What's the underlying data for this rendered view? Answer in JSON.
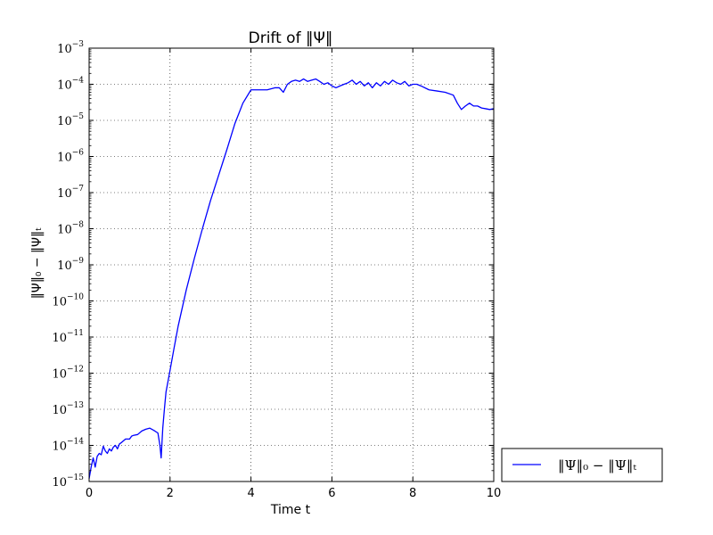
{
  "chart_data": {
    "type": "line",
    "title": "Drift of ‖Ψ‖",
    "xlabel": "Time t",
    "ylabel": "‖Ψ‖₀ − ‖Ψ‖ₜ",
    "xlim": [
      0,
      10
    ],
    "ylim_log10": [
      -15,
      -3
    ],
    "y_scale": "log",
    "grid": true,
    "legend_position": "outside-right-bottom",
    "x_ticks": [
      "0",
      "2",
      "4",
      "6",
      "8",
      "10"
    ],
    "y_tick_base": "10",
    "y_tick_exponents": [
      "−15",
      "−14",
      "−13",
      "−12",
      "−11",
      "−10",
      "−9",
      "−8",
      "−7",
      "−6",
      "−5",
      "−4",
      "−3"
    ],
    "series": [
      {
        "name": "‖Ψ‖₀ − ‖Ψ‖ₜ",
        "color": "#0000ff",
        "x": [
          0.0,
          0.05,
          0.1,
          0.15,
          0.2,
          0.25,
          0.3,
          0.35,
          0.4,
          0.45,
          0.5,
          0.55,
          0.6,
          0.65,
          0.7,
          0.75,
          0.8,
          0.9,
          1.0,
          1.05,
          1.1,
          1.2,
          1.3,
          1.4,
          1.5,
          1.6,
          1.7,
          1.75,
          1.78,
          1.82,
          1.86,
          1.9,
          1.95,
          2.0,
          2.1,
          2.2,
          2.4,
          2.6,
          2.8,
          3.0,
          3.2,
          3.4,
          3.6,
          3.8,
          4.0,
          4.2,
          4.4,
          4.6,
          4.7,
          4.8,
          4.9,
          5.0,
          5.1,
          5.2,
          5.3,
          5.4,
          5.5,
          5.6,
          5.7,
          5.8,
          5.9,
          6.0,
          6.1,
          6.2,
          6.3,
          6.4,
          6.5,
          6.6,
          6.7,
          6.8,
          6.9,
          7.0,
          7.1,
          7.2,
          7.3,
          7.4,
          7.5,
          7.6,
          7.7,
          7.8,
          7.9,
          8.0,
          8.1,
          8.2,
          8.4,
          8.6,
          8.8,
          9.0,
          9.1,
          9.2,
          9.3,
          9.4,
          9.5,
          9.6,
          9.7,
          9.8,
          9.9,
          10.0
        ],
        "y": [
          1.2e-15,
          2.5e-15,
          4.5e-15,
          2.5e-15,
          5e-15,
          6e-15,
          5.5e-15,
          9.5e-15,
          7e-15,
          6e-15,
          8e-15,
          7e-15,
          9e-15,
          1e-14,
          8e-15,
          1.1e-14,
          1.2e-14,
          1.5e-14,
          1.5e-14,
          1.8e-14,
          1.9e-14,
          2e-14,
          2.5e-14,
          2.8e-14,
          3e-14,
          2.6e-14,
          2.2e-14,
          1e-14,
          4.5e-15,
          3e-14,
          1e-13,
          3e-13,
          6e-13,
          1.2e-12,
          5e-12,
          2e-11,
          2e-10,
          1.5e-09,
          1e-08,
          6e-08,
          3e-07,
          1.5e-06,
          8e-06,
          3e-05,
          7e-05,
          7e-05,
          7e-05,
          8e-05,
          8e-05,
          6e-05,
          0.0001,
          0.00012,
          0.00013,
          0.00012,
          0.00014,
          0.00012,
          0.00013,
          0.00014,
          0.00012,
          0.0001,
          0.00011,
          9e-05,
          8e-05,
          9e-05,
          0.0001,
          0.00011,
          0.00013,
          0.0001,
          0.00012,
          9e-05,
          0.00011,
          8e-05,
          0.00011,
          9e-05,
          0.00012,
          0.0001,
          0.00013,
          0.00011,
          0.0001,
          0.00012,
          9e-05,
          0.0001,
          0.0001,
          9e-05,
          7e-05,
          6.5e-05,
          6e-05,
          5e-05,
          3e-05,
          2e-05,
          2.5e-05,
          3e-05,
          2.5e-05,
          2.5e-05,
          2.2e-05,
          2.1e-05,
          2e-05,
          2.1e-05
        ]
      }
    ]
  }
}
